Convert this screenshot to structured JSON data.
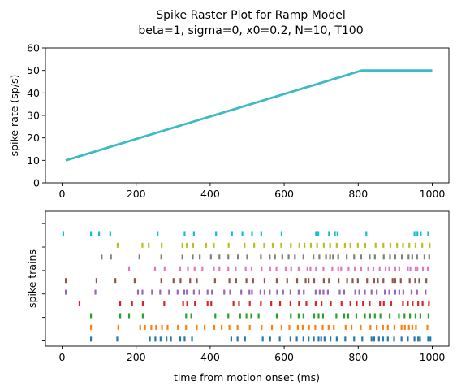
{
  "figure": {
    "title_line1": "Spike Raster Plot for Ramp Model",
    "title_line2": "beta=1, sigma=0, x0=0.2, N=10, T100"
  },
  "chart_data": [
    {
      "type": "line",
      "ylabel": "spike rate (sp/s)",
      "xlabel": "",
      "xlim": [
        -45,
        1045
      ],
      "ylim": [
        0,
        60
      ],
      "xticks": [
        0,
        200,
        400,
        600,
        800,
        1000
      ],
      "yticks": [
        0,
        10,
        20,
        30,
        40,
        50,
        60
      ],
      "series": [
        {
          "color": "#2f8fb3",
          "x": [
            10,
            810,
            1000
          ],
          "y": [
            10,
            50,
            50
          ]
        },
        {
          "color": "#3cbcc4",
          "x": [
            10,
            810,
            1000
          ],
          "y": [
            10,
            50,
            50
          ]
        }
      ],
      "grid": false
    },
    {
      "type": "scatter",
      "marker": "vertical-tick",
      "xlabel": "time from motion onset (ms)",
      "ylabel": "spike trains",
      "xlim": [
        -45,
        1045
      ],
      "ylim": [
        -0.6,
        10.9
      ],
      "xticks": [
        0,
        200,
        400,
        600,
        800,
        1000
      ],
      "yticks_count": 6,
      "grid": false,
      "trains": [
        {
          "row": 0,
          "color": "#1f77b4",
          "times": [
            78,
            149,
            237,
            252,
            266,
            282,
            294,
            319,
            331,
            351,
            457,
            474,
            494,
            542,
            562,
            588,
            617,
            634,
            652,
            666,
            680,
            693,
            700,
            709,
            725,
            742,
            765,
            789,
            811,
            836,
            843,
            856,
            867,
            880,
            897,
            917,
            934,
            952,
            962,
            967,
            989,
            995
          ]
        },
        {
          "row": 1,
          "color": "#ff7f0e",
          "times": [
            78,
            152,
            211,
            224,
            241,
            254,
            270,
            285,
            313,
            335,
            364,
            385,
            411,
            431,
            452,
            474,
            507,
            539,
            567,
            593,
            614,
            637,
            650,
            667,
            684,
            704,
            720,
            734,
            766,
            782,
            807,
            833,
            850,
            867,
            880,
            898,
            917,
            926,
            937,
            946,
            956,
            987
          ]
        },
        {
          "row": 2,
          "color": "#2ca02c",
          "times": [
            78,
            157,
            181,
            218,
            335,
            349,
            414,
            449,
            481,
            498,
            511,
            531,
            580,
            618,
            639,
            652,
            681,
            693,
            705,
            741,
            762,
            773,
            795,
            818,
            832,
            845,
            860,
            885,
            910,
            925,
            940,
            955,
            968,
            990
          ]
        },
        {
          "row": 3,
          "color": "#d62728",
          "times": [
            47,
            157,
            189,
            218,
            276,
            327,
            338,
            359,
            393,
            403,
            463,
            478,
            507,
            537,
            565,
            589,
            617,
            640,
            660,
            685,
            701,
            726,
            755,
            779,
            796,
            813,
            831,
            859,
            869,
            889,
            921,
            934,
            947,
            962,
            974,
            991
          ]
        },
        {
          "row": 4,
          "color": "#9467bd",
          "times": [
            10,
            90,
            205,
            217,
            243,
            265,
            289,
            312,
            330,
            337,
            356,
            371,
            393,
            405,
            438,
            454,
            484,
            506,
            513,
            536,
            547,
            561,
            581,
            597,
            617,
            639,
            653,
            685,
            696,
            706,
            718,
            750,
            762,
            792,
            803,
            818,
            836,
            850,
            872,
            884,
            900,
            911,
            922,
            944,
            959,
            982
          ]
        },
        {
          "row": 5,
          "color": "#8c564b",
          "times": [
            10,
            93,
            144,
            196,
            268,
            301,
            320,
            346,
            364,
            413,
            452,
            470,
            498,
            516,
            547,
            580,
            608,
            635,
            658,
            666,
            681,
            707,
            721,
            747,
            770,
            785,
            799,
            824,
            843,
            853,
            868,
            893,
            900,
            915,
            939,
            954,
            965,
            984
          ]
        },
        {
          "row": 6,
          "color": "#e377c2",
          "times": [
            181,
            251,
            277,
            319,
            340,
            358,
            379,
            410,
            425,
            449,
            469,
            496,
            512,
            539,
            562,
            579,
            604,
            619,
            639,
            663,
            671,
            686,
            706,
            730,
            746,
            754,
            774,
            791,
            808,
            827,
            841,
            858,
            874,
            884,
            900,
            911,
            934,
            941,
            955,
            960,
            975,
            988
          ]
        },
        {
          "row": 7,
          "color": "#7f7f7f",
          "times": [
            107,
            132,
            209,
            268,
            325,
            353,
            372,
            402,
            425,
            449,
            475,
            500,
            537,
            561,
            575,
            595,
            612,
            629,
            652,
            679,
            695,
            713,
            724,
            732,
            746,
            769,
            789,
            808,
            831,
            845,
            869,
            886,
            900,
            918,
            936,
            946,
            959,
            979,
            992
          ]
        },
        {
          "row": 8,
          "color": "#bcbd22",
          "times": [
            150,
            217,
            234,
            269,
            325,
            337,
            354,
            389,
            410,
            450,
            493,
            519,
            546,
            569,
            592,
            618,
            641,
            655,
            672,
            689,
            707,
            724,
            742,
            764,
            779,
            799,
            819,
            847,
            868,
            887,
            905,
            921,
            938,
            955,
            973,
            993
          ]
        },
        {
          "row": 9,
          "color": "#17becf",
          "times": [
            3,
            78,
            100,
            130,
            258,
            331,
            356,
            416,
            459,
            487,
            513,
            538,
            593,
            686,
            692,
            721,
            737,
            744,
            822,
            952,
            960,
            969,
            989
          ]
        }
      ]
    }
  ]
}
